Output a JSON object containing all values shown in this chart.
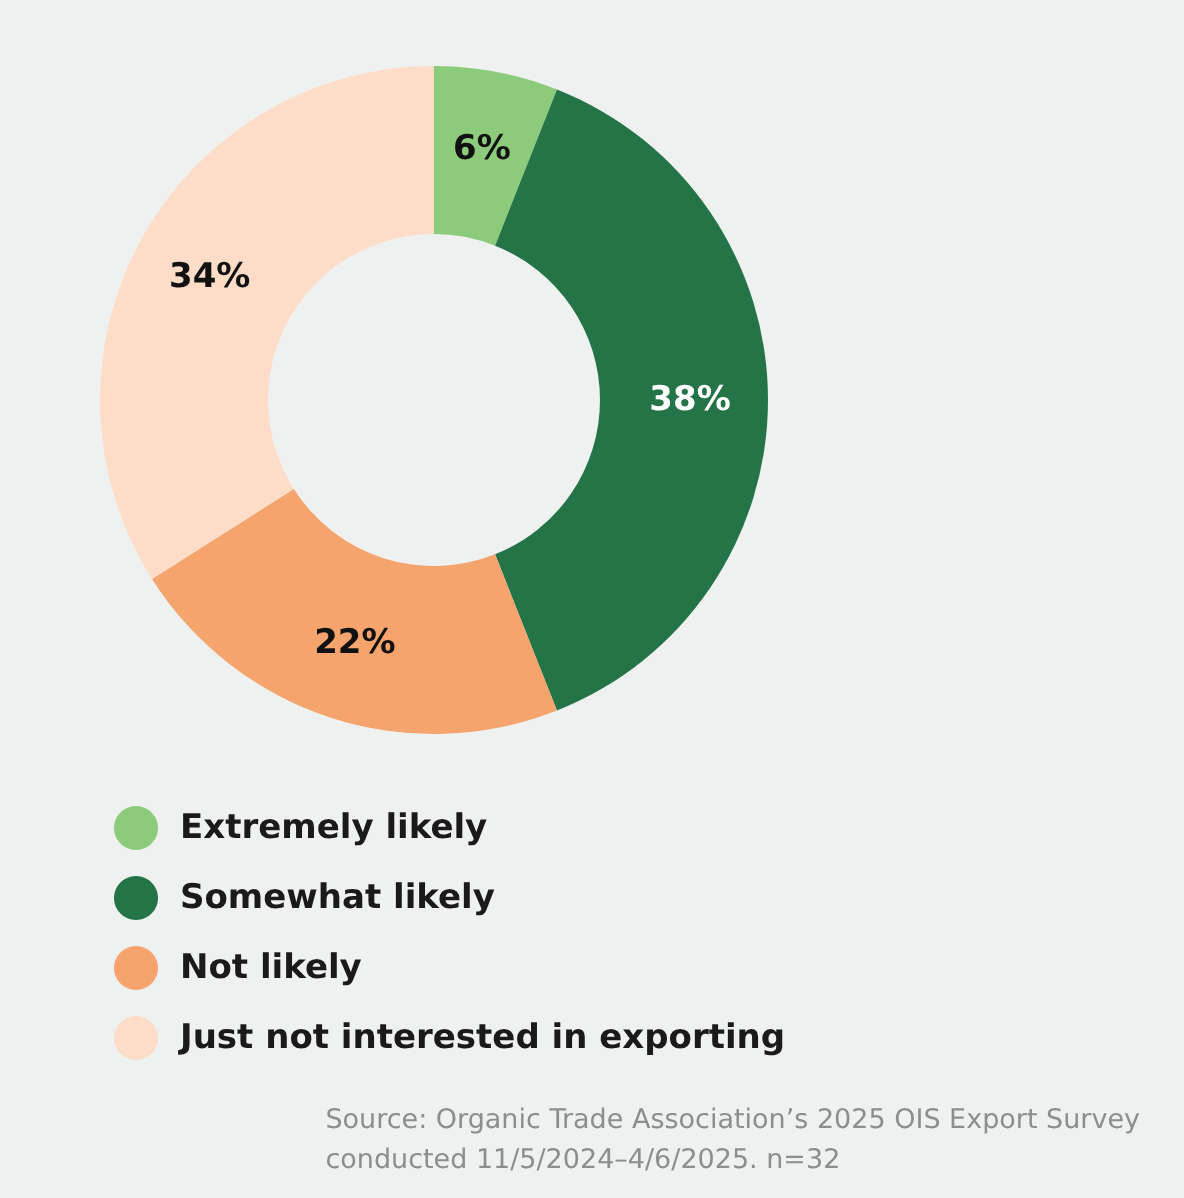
{
  "chart_data": {
    "type": "donut",
    "categories": [
      "Extremely likely",
      "Somewhat likely",
      "Not likely",
      "Just not interested in exporting"
    ],
    "values": [
      6,
      38,
      22,
      34
    ],
    "colors": [
      "#8dcb7c",
      "#247448",
      "#f4a46c",
      "#fddcc8"
    ],
    "value_labels": [
      "6%",
      "38%",
      "22%",
      "34%"
    ],
    "legend": "bottom",
    "annotations": [
      "Source: Organic Trade Association’s 2025 OIS Export Survey\nconducted 11/5/2024–4/6/2025. n=32"
    ]
  }
}
